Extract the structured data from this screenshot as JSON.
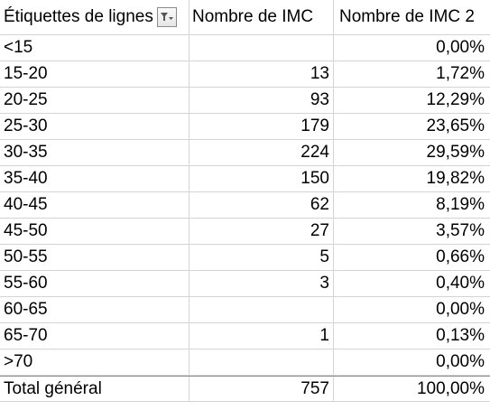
{
  "pivot": {
    "headers": {
      "row_labels": "Étiquettes de lignes",
      "col1": "Nombre de IMC",
      "col2": "Nombre de IMC 2"
    },
    "filter_icon": "filter-dropdown-icon",
    "rows": [
      {
        "label": "<15",
        "count": "",
        "percent": "0,00%"
      },
      {
        "label": "15-20",
        "count": "13",
        "percent": "1,72%"
      },
      {
        "label": "20-25",
        "count": "93",
        "percent": "12,29%"
      },
      {
        "label": "25-30",
        "count": "179",
        "percent": "23,65%"
      },
      {
        "label": "30-35",
        "count": "224",
        "percent": "29,59%"
      },
      {
        "label": "35-40",
        "count": "150",
        "percent": "19,82%"
      },
      {
        "label": "40-45",
        "count": "62",
        "percent": "8,19%"
      },
      {
        "label": "45-50",
        "count": "27",
        "percent": "3,57%"
      },
      {
        "label": "50-55",
        "count": "5",
        "percent": "0,66%"
      },
      {
        "label": "55-60",
        "count": "3",
        "percent": "0,40%"
      },
      {
        "label": "60-65",
        "count": "",
        "percent": "0,00%"
      },
      {
        "label": "65-70",
        "count": "1",
        "percent": "0,13%"
      },
      {
        "label": ">70",
        "count": "",
        "percent": "0,00%"
      }
    ],
    "total": {
      "label": "Total général",
      "count": "757",
      "percent": "100,00%"
    }
  }
}
